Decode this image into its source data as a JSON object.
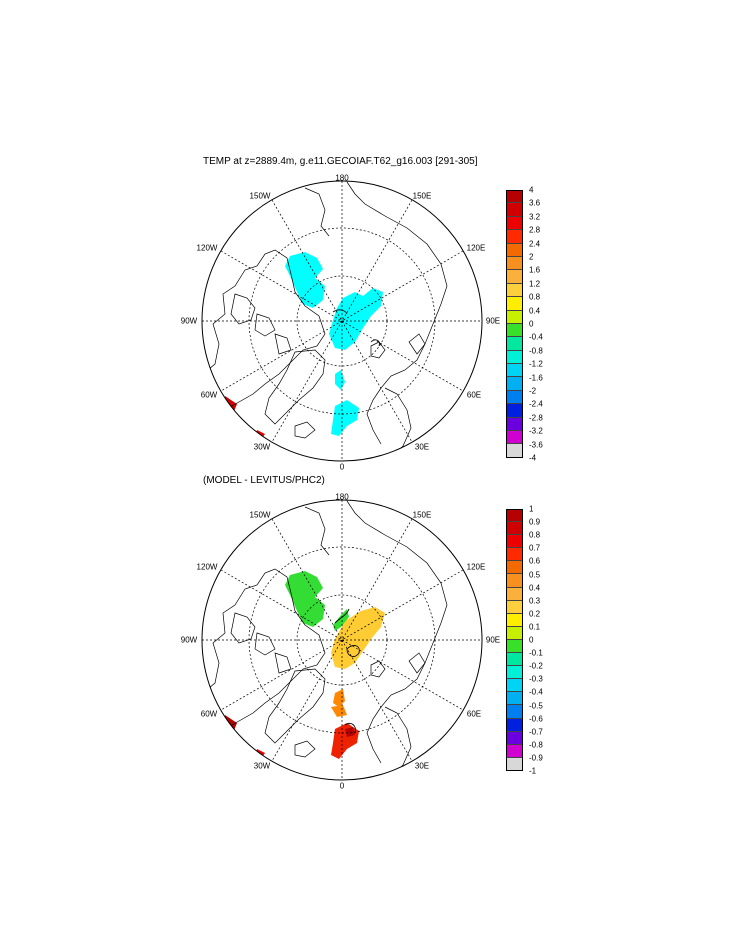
{
  "panels": [
    {
      "title": "TEMP at z=2889.4m, g.e11.GECOIAF.T62_g16.003 [291-305]",
      "lon_labels": {
        "l180": "180",
        "l150w": "150W",
        "l150e": "150E",
        "l120w": "120W",
        "l120e": "120E",
        "l90w": "90W",
        "l90e": "90E",
        "l60w": "60W",
        "l60e": "60E",
        "l30w": "30W",
        "l30e": "30E",
        "l0": "0"
      },
      "colorbar_labels": [
        "4",
        "3.6",
        "3.2",
        "2.8",
        "2.4",
        "2",
        "1.6",
        "1.2",
        "0.8",
        "0.4",
        "0",
        "-0.4",
        "-0.8",
        "-1.2",
        "-1.6",
        "-2",
        "-2.4",
        "-2.8",
        "-3.2",
        "-3.6",
        "-4"
      ]
    },
    {
      "title": "(MODEL - LEVITUS/PHC2)",
      "lon_labels": {
        "l180": "180",
        "l150w": "150W",
        "l150e": "150E",
        "l120w": "120W",
        "l120e": "120E",
        "l90w": "90W",
        "l90e": "90E",
        "l60w": "60W",
        "l60e": "60E",
        "l30w": "30W",
        "l30e": "30E",
        "l0": "0"
      },
      "colorbar_labels": [
        "1",
        "0.9",
        "0.8",
        "0.7",
        "0.6",
        "0.5",
        "0.4",
        "0.3",
        "0.2",
        "0.1",
        "0",
        "-0.1",
        "-0.2",
        "-0.3",
        "-0.4",
        "-0.5",
        "-0.6",
        "-0.7",
        "-0.8",
        "-0.9",
        "-1"
      ]
    }
  ],
  "colors": {
    "colorbar_top_to_bottom": [
      "#b40000",
      "#d00000",
      "#ee0000",
      "#ff2a00",
      "#f26a00",
      "#f7901e",
      "#fbb03b",
      "#fdcf3d",
      "#ffee00",
      "#c6f000",
      "#38e02a",
      "#00e8a0",
      "#00f0d8",
      "#00d4f4",
      "#00b0f0",
      "#0080f0",
      "#0020e0",
      "#6a00e0",
      "#d000d0",
      "#d8d8d8",
      "#707070"
    ],
    "panel1_fill": "#00ffff",
    "panel2_cool": "#33dd33",
    "panel2_warm": "#ffcc33",
    "panel2_hot": "#ee2200",
    "panel2_mid": "#ff8800"
  }
}
